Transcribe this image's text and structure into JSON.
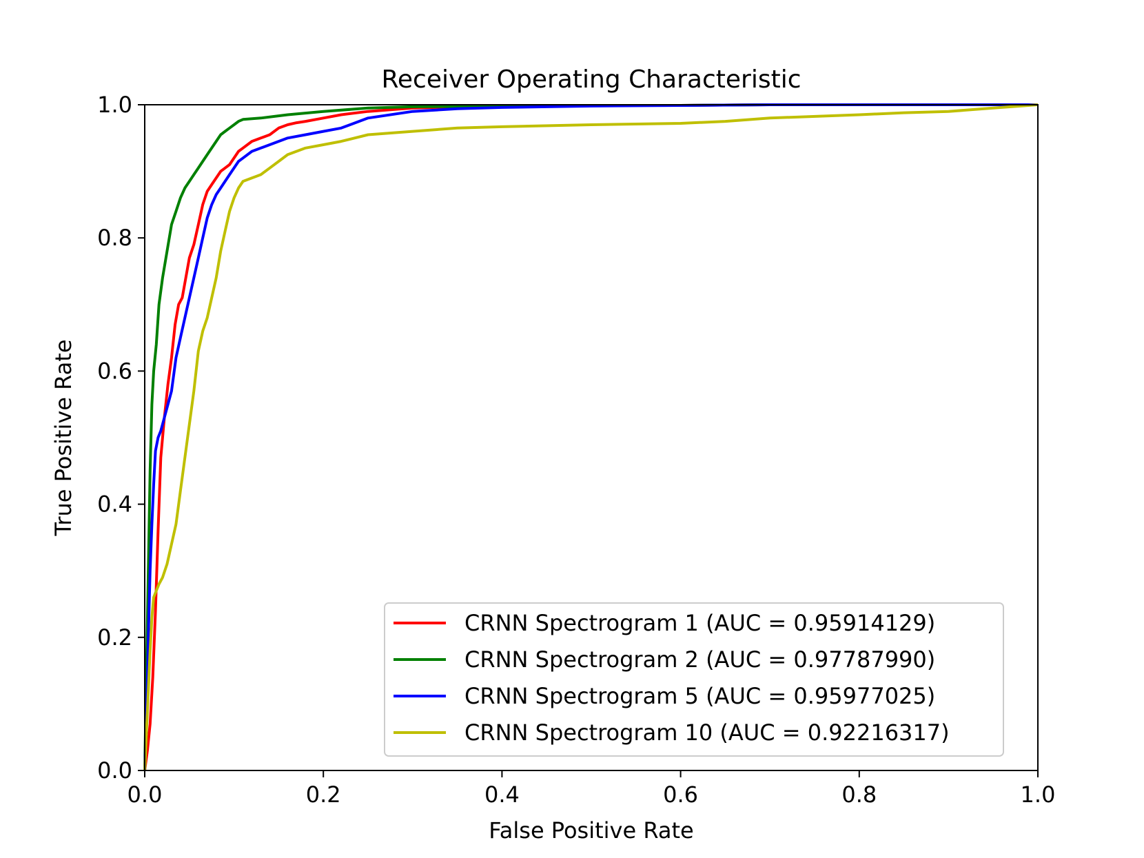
{
  "chart_data": {
    "type": "line",
    "title": "Receiver Operating Characteristic",
    "xlabel": "False Positive Rate",
    "ylabel": "True Positive Rate",
    "xlim": [
      0.0,
      1.0
    ],
    "ylim": [
      0.0,
      1.0
    ],
    "xticks": [
      "0.0",
      "0.2",
      "0.4",
      "0.6",
      "0.8",
      "1.0"
    ],
    "yticks": [
      "0.0",
      "0.2",
      "0.4",
      "0.6",
      "0.8",
      "1.0"
    ],
    "grid": false,
    "legend_position": "lower-right",
    "series": [
      {
        "name": "CRNN Spectrogram 1 (AUC = 0.95914129)",
        "color": "#ff0000",
        "x": [
          0.0,
          0.003,
          0.006,
          0.009,
          0.012,
          0.015,
          0.018,
          0.022,
          0.026,
          0.03,
          0.034,
          0.038,
          0.042,
          0.046,
          0.05,
          0.055,
          0.06,
          0.065,
          0.07,
          0.075,
          0.08,
          0.085,
          0.09,
          0.095,
          0.1,
          0.105,
          0.11,
          0.12,
          0.13,
          0.14,
          0.15,
          0.16,
          0.17,
          0.18,
          0.2,
          0.22,
          0.25,
          0.3,
          0.35,
          0.4,
          0.5,
          0.6,
          0.7,
          0.8,
          0.9,
          1.0
        ],
        "y": [
          0.0,
          0.03,
          0.07,
          0.14,
          0.24,
          0.36,
          0.47,
          0.53,
          0.58,
          0.62,
          0.67,
          0.7,
          0.71,
          0.74,
          0.77,
          0.79,
          0.82,
          0.85,
          0.87,
          0.88,
          0.89,
          0.9,
          0.905,
          0.91,
          0.92,
          0.93,
          0.935,
          0.945,
          0.95,
          0.955,
          0.965,
          0.97,
          0.973,
          0.975,
          0.98,
          0.985,
          0.99,
          0.995,
          0.997,
          0.998,
          0.999,
          0.999,
          1.0,
          1.0,
          1.0,
          1.0
        ]
      },
      {
        "name": "CRNN Spectrogram 2 (AUC = 0.97787990)",
        "color": "#008000",
        "x": [
          0.0,
          0.002,
          0.004,
          0.006,
          0.008,
          0.01,
          0.013,
          0.016,
          0.02,
          0.025,
          0.03,
          0.035,
          0.04,
          0.045,
          0.05,
          0.055,
          0.06,
          0.065,
          0.07,
          0.075,
          0.08,
          0.085,
          0.09,
          0.095,
          0.1,
          0.105,
          0.11,
          0.13,
          0.16,
          0.2,
          0.25,
          0.3,
          0.4,
          0.5,
          0.6,
          0.7,
          0.8,
          0.9,
          1.0
        ],
        "y": [
          0.0,
          0.15,
          0.3,
          0.45,
          0.55,
          0.6,
          0.64,
          0.7,
          0.74,
          0.78,
          0.82,
          0.84,
          0.86,
          0.875,
          0.885,
          0.895,
          0.905,
          0.915,
          0.925,
          0.935,
          0.945,
          0.955,
          0.96,
          0.965,
          0.97,
          0.975,
          0.978,
          0.98,
          0.985,
          0.99,
          0.995,
          0.997,
          0.998,
          0.999,
          0.999,
          1.0,
          1.0,
          1.0,
          1.0
        ]
      },
      {
        "name": "CRNN Spectrogram 5 (AUC = 0.95977025)",
        "color": "#0000ff",
        "x": [
          0.0,
          0.002,
          0.004,
          0.006,
          0.008,
          0.01,
          0.012,
          0.015,
          0.018,
          0.022,
          0.026,
          0.03,
          0.035,
          0.04,
          0.045,
          0.05,
          0.055,
          0.06,
          0.065,
          0.07,
          0.075,
          0.08,
          0.085,
          0.09,
          0.095,
          0.1,
          0.105,
          0.11,
          0.12,
          0.13,
          0.14,
          0.15,
          0.16,
          0.18,
          0.2,
          0.22,
          0.25,
          0.3,
          0.35,
          0.4,
          0.5,
          0.6,
          0.7,
          0.8,
          0.9,
          1.0
        ],
        "y": [
          0.0,
          0.08,
          0.2,
          0.3,
          0.37,
          0.43,
          0.48,
          0.5,
          0.51,
          0.53,
          0.55,
          0.57,
          0.62,
          0.65,
          0.68,
          0.71,
          0.74,
          0.77,
          0.8,
          0.83,
          0.85,
          0.865,
          0.875,
          0.885,
          0.895,
          0.905,
          0.915,
          0.92,
          0.93,
          0.935,
          0.94,
          0.945,
          0.95,
          0.955,
          0.96,
          0.965,
          0.98,
          0.99,
          0.994,
          0.996,
          0.998,
          0.999,
          1.0,
          1.0,
          1.0,
          1.0
        ]
      },
      {
        "name": "CRNN Spectrogram 10 (AUC = 0.92216317)",
        "color": "#bfbf00",
        "x": [
          0.0,
          0.002,
          0.004,
          0.006,
          0.008,
          0.01,
          0.013,
          0.016,
          0.02,
          0.025,
          0.03,
          0.035,
          0.04,
          0.045,
          0.05,
          0.055,
          0.06,
          0.065,
          0.07,
          0.075,
          0.08,
          0.085,
          0.09,
          0.095,
          0.1,
          0.105,
          0.11,
          0.12,
          0.13,
          0.14,
          0.15,
          0.16,
          0.18,
          0.2,
          0.22,
          0.25,
          0.3,
          0.35,
          0.4,
          0.5,
          0.6,
          0.65,
          0.7,
          0.8,
          0.85,
          0.9,
          0.95,
          1.0
        ],
        "y": [
          0.0,
          0.06,
          0.12,
          0.18,
          0.23,
          0.26,
          0.27,
          0.28,
          0.29,
          0.31,
          0.34,
          0.37,
          0.42,
          0.47,
          0.52,
          0.57,
          0.63,
          0.66,
          0.68,
          0.71,
          0.74,
          0.78,
          0.81,
          0.84,
          0.86,
          0.875,
          0.885,
          0.89,
          0.895,
          0.905,
          0.915,
          0.925,
          0.935,
          0.94,
          0.945,
          0.955,
          0.96,
          0.965,
          0.967,
          0.97,
          0.972,
          0.975,
          0.98,
          0.985,
          0.988,
          0.99,
          0.995,
          1.0
        ]
      }
    ]
  }
}
